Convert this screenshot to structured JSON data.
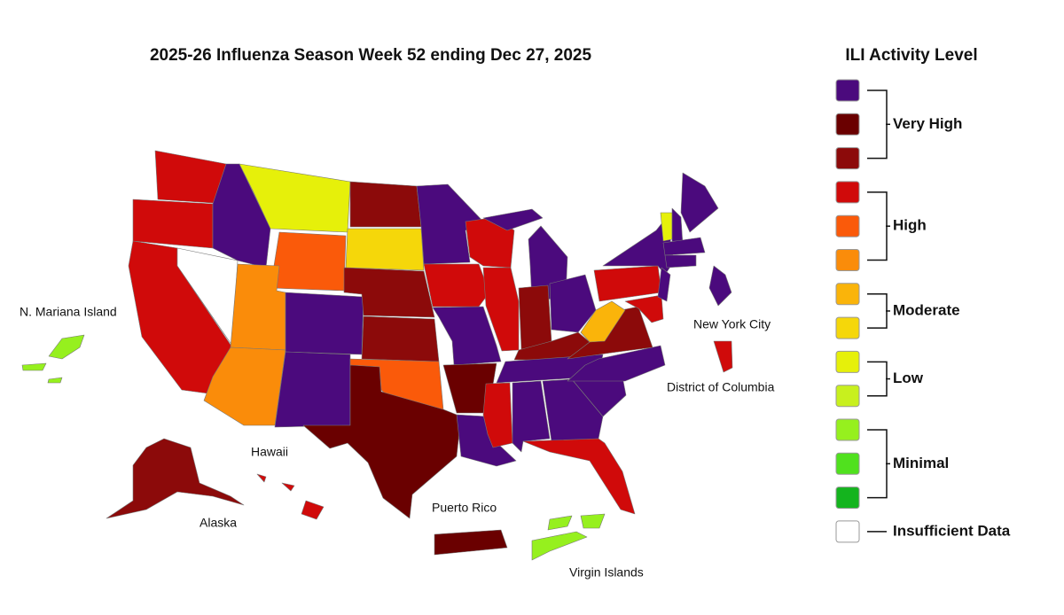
{
  "header": {
    "title": "2025-26 Influenza Season Week 52 ending Dec 27, 2025"
  },
  "legend": {
    "title": "ILI Activity Level",
    "groups": [
      {
        "label": "Very High",
        "colors": [
          "#4b0a7d",
          "#6a0000",
          "#8c0a0a"
        ]
      },
      {
        "label": "High",
        "colors": [
          "#d00a0a",
          "#fa5a0a",
          "#fa8c0a"
        ]
      },
      {
        "label": "Moderate",
        "colors": [
          "#fab40a",
          "#f5d70a"
        ]
      },
      {
        "label": "Low",
        "colors": [
          "#e6f00a",
          "#c8f01e"
        ]
      },
      {
        "label": "Minimal",
        "colors": [
          "#96f01e",
          "#50e11e",
          "#14b41e"
        ]
      },
      {
        "label": "Insufficient Data",
        "colors": [
          "#ffffff"
        ]
      }
    ]
  },
  "regions": [
    {
      "label": "N. Mariana Island"
    },
    {
      "label": "Hawaii"
    },
    {
      "label": "Alaska"
    },
    {
      "label": "Puerto Rico"
    },
    {
      "label": "Virgin Islands"
    },
    {
      "label": "New York City"
    },
    {
      "label": "District of Columbia"
    }
  ]
}
